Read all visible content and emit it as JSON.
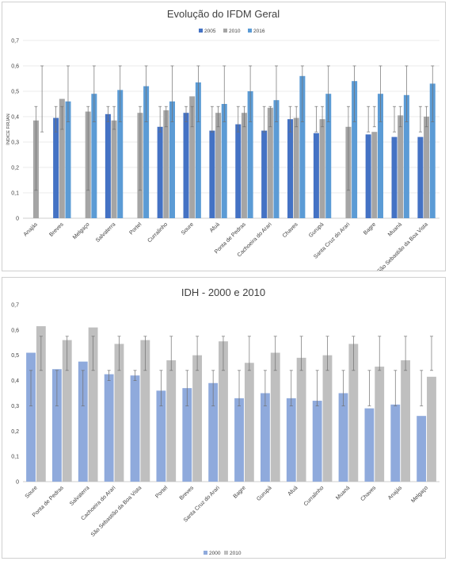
{
  "chart_data": [
    {
      "type": "bar",
      "title": "Evolução do IFDM Geral",
      "xlabel": "",
      "ylabel": "ÍNDICE FIRJAN",
      "ylim": [
        0,
        0.7
      ],
      "yticks": [
        "0",
        "0,1",
        "0,2",
        "0,3",
        "0,4",
        "0,5",
        "0,6",
        "0,7"
      ],
      "legend_position": "top-right",
      "grid": true,
      "categories": [
        "Anajás",
        "Breves",
        "Melgaço",
        "Salvaterra",
        "Portel",
        "Curralinho",
        "Soure",
        "Afuá",
        "Ponta de Pedras",
        "Cachoeira do Arari",
        "Chaves",
        "Gurupá",
        "Santa Cruz do Arari",
        "Bagre",
        "Muaná",
        "São Sebastião da Boa Vista"
      ],
      "series": [
        {
          "name": "2005",
          "color": "#4472c4",
          "values": [
            null,
            0.395,
            null,
            0.41,
            null,
            0.36,
            0.415,
            0.345,
            0.37,
            0.345,
            0.39,
            0.335,
            null,
            0.33,
            0.32,
            0.32
          ],
          "error_low": [
            null,
            0.34,
            null,
            0.38,
            null,
            0.34,
            0.38,
            0.34,
            0.34,
            0.34,
            0.34,
            0.34,
            null,
            0.34,
            0.34,
            0.34
          ],
          "error_high": [
            null,
            0.44,
            null,
            0.44,
            null,
            0.44,
            0.44,
            0.44,
            0.44,
            0.44,
            0.44,
            0.44,
            null,
            0.44,
            0.44,
            0.44
          ]
        },
        {
          "name": "2010",
          "color": "#a5a5a5",
          "values": [
            0.385,
            0.47,
            0.42,
            0.385,
            0.415,
            0.425,
            0.48,
            0.415,
            0.415,
            0.435,
            0.395,
            0.39,
            0.36,
            0.34,
            0.405,
            0.4
          ],
          "error_low": [
            0.11,
            0.35,
            0.11,
            0.35,
            0.11,
            0.36,
            0.36,
            0.36,
            0.36,
            0.36,
            0.36,
            0.36,
            0.11,
            0.36,
            0.36,
            0.36
          ],
          "error_high": [
            0.44,
            0.44,
            0.44,
            0.44,
            0.44,
            0.44,
            0.44,
            0.44,
            0.44,
            0.44,
            0.44,
            0.44,
            0.44,
            0.44,
            0.44,
            0.44
          ]
        },
        {
          "name": "2016",
          "color": "#5b9bd5",
          "values": [
            null,
            0.46,
            0.49,
            0.505,
            0.52,
            0.46,
            0.535,
            0.45,
            0.5,
            0.465,
            0.56,
            0.49,
            0.54,
            0.49,
            0.485,
            0.53
          ],
          "error_low": [
            0.34,
            0.38,
            0.38,
            0.38,
            0.38,
            0.38,
            0.38,
            0.38,
            0.38,
            0.38,
            0.38,
            0.38,
            0.38,
            0.38,
            0.38,
            0.38
          ],
          "error_high": [
            0.6,
            0.6,
            0.6,
            0.6,
            0.6,
            0.6,
            0.6,
            0.6,
            0.6,
            0.6,
            0.6,
            0.6,
            0.6,
            0.6,
            0.6,
            0.6
          ]
        }
      ]
    },
    {
      "type": "bar",
      "title": "IDH - 2000 e 2010",
      "xlabel": "",
      "ylabel": "",
      "ylim": [
        0,
        0.7
      ],
      "yticks": [
        "0",
        "0,1",
        "0,2",
        "0,3",
        "0,4",
        "0,5",
        "0,6",
        "0,7"
      ],
      "legend_position": "bottom",
      "grid": false,
      "categories": [
        "Soure",
        "Ponta de Pedras",
        "Salvaterra",
        "Cachoeira do Arari",
        "São Sebastião da Boa Vista",
        "Portel",
        "Breves",
        "Santa Cruz do Arari",
        "Bagre",
        "Gurupá",
        "Afuá",
        "Curralinho",
        "Muaná",
        "Chaves",
        "Anajás",
        "Melgaço"
      ],
      "series": [
        {
          "name": "2000",
          "color": "#8faadc",
          "values": [
            0.51,
            0.445,
            0.475,
            0.425,
            0.42,
            0.36,
            0.37,
            0.39,
            0.33,
            0.35,
            0.33,
            0.32,
            0.35,
            0.29,
            0.305,
            0.26
          ],
          "error_low": [
            0.3,
            0.3,
            0.3,
            0.4,
            0.4,
            0.3,
            0.3,
            0.3,
            0.3,
            0.3,
            0.3,
            0.3,
            0.3,
            0.3,
            0.3,
            0.3
          ],
          "error_high": [
            0.44,
            0.44,
            0.44,
            0.44,
            0.44,
            0.44,
            0.44,
            0.44,
            0.44,
            0.44,
            0.44,
            0.44,
            0.44,
            0.44,
            0.44,
            0.44
          ]
        },
        {
          "name": "2010",
          "color": "#bfbfbf",
          "values": [
            0.615,
            0.56,
            0.61,
            0.545,
            0.56,
            0.48,
            0.5,
            0.555,
            0.47,
            0.51,
            0.49,
            0.5,
            0.545,
            0.455,
            0.48,
            0.415
          ],
          "error_low": [
            0.44,
            0.44,
            0.44,
            0.44,
            0.44,
            0.44,
            0.44,
            0.44,
            0.44,
            0.44,
            0.44,
            0.44,
            0.44,
            0.44,
            0.44,
            0.44
          ],
          "error_high": [
            0.575,
            0.575,
            0.575,
            0.575,
            0.575,
            0.575,
            0.575,
            0.575,
            0.575,
            0.575,
            0.575,
            0.575,
            0.575,
            0.575,
            0.575,
            0.575
          ]
        }
      ]
    }
  ]
}
